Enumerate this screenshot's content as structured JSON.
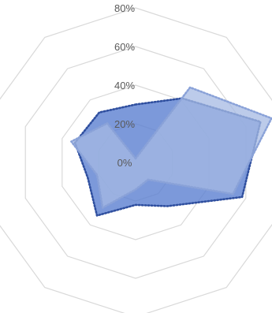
{
  "chart_data": {
    "type": "radar",
    "axis_count": 10,
    "ylim": [
      0,
      80
    ],
    "tick_labels": [
      "0%",
      "20%",
      "40%",
      "60%",
      "80%"
    ],
    "grid": true,
    "legend": "none",
    "series": [
      {
        "values": [
          0.3,
          0.41,
          0.68,
          0.58,
          0.28,
          0.22,
          0.34,
          0.26,
          0.33,
          0.32
        ],
        "fill": "#5b7fd1",
        "fill_opacity": 0.8,
        "stroke": "#2f4f9f",
        "stroke_style": "dotted"
      },
      {
        "values": [
          0.02,
          0.48,
          0.74,
          0.53,
          0.11,
          0.14,
          0.29,
          0.21,
          0.35,
          0.25
        ],
        "fill": "#a6b9e3",
        "fill_opacity": 0.75,
        "stroke": "#8aa2d8",
        "stroke_style": "dotted"
      }
    ],
    "colors": {
      "grid": "#d9d9d9",
      "tick_text": "#595959"
    }
  }
}
